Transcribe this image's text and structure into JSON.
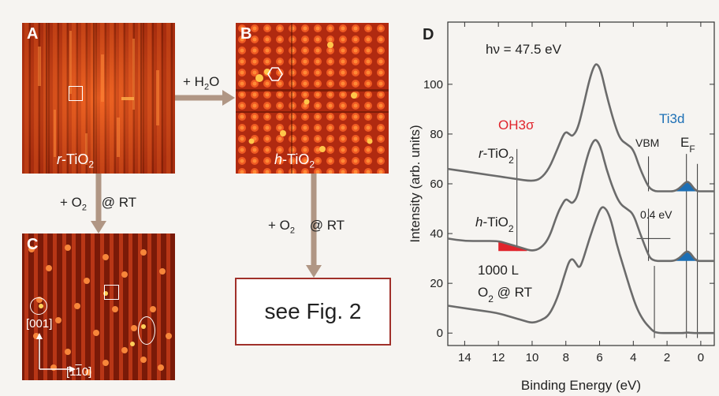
{
  "panel_a": {
    "label": "A",
    "material_prefix": "r",
    "material": "-TiO",
    "subscript": "2"
  },
  "panel_b": {
    "label": "B",
    "material_prefix": "h",
    "material": "-TiO",
    "subscript": "2"
  },
  "panel_c": {
    "label": "C",
    "axis_vertical": "[001]",
    "axis_horizontal": "[1̄ 10]",
    "axis_horizontal_plain": "[1",
    "axis_horizontal_bar": "1",
    "axis_horizontal_end": "0]"
  },
  "arrow_ab": {
    "prefix": "+ H",
    "subscript": "2",
    "suffix": "O"
  },
  "arrow_ac": {
    "prefix": "+ O",
    "subscript": "2",
    "suffix": "@ RT"
  },
  "arrow_b_box": {
    "prefix": "+ O",
    "subscript": "2",
    "suffix": "@ RT"
  },
  "fig_box": {
    "text": "see Fig. 2"
  },
  "panel_d": {
    "label": "D"
  },
  "chart_data": {
    "type": "line",
    "xlabel": "Binding Energy  (eV)",
    "ylabel": "Intensity  (arb. units)",
    "xlim": [
      15,
      -0.8
    ],
    "ylim": [
      -5,
      125
    ],
    "x_reversed": true,
    "xticks": [
      14,
      12,
      10,
      8,
      6,
      4,
      2,
      0
    ],
    "yticks": [
      0,
      20,
      40,
      60,
      80,
      100
    ],
    "annotations": {
      "photon_energy": "hν = 47.5 eV",
      "oh_label": "OH3σ",
      "ti_label": "Ti3d",
      "vbm": "VBM",
      "ef": "E",
      "ef_sub": "F",
      "gap": "0.4 eV",
      "r_tio2_prefix": "r",
      "r_tio2": "-TiO",
      "h_tio2_prefix": "h",
      "h_tio2": "-TiO",
      "tio2_sub": "2",
      "dose_line1": "1000 L",
      "dose_line2_prefix": "O",
      "dose_line2_sub": "2",
      "dose_line2_suffix": "@ RT"
    },
    "colors": {
      "curve": "#6b6b6b",
      "oh_fill": "#e0242c",
      "ti_fill": "#1c6fb5",
      "oh_text": "#e0242c",
      "ti_text": "#1c6fb5"
    },
    "series": [
      {
        "name": "r-TiO2",
        "x": [
          15,
          14,
          13,
          12,
          11,
          10,
          9.5,
          9,
          8.5,
          8.2,
          8.0,
          7.8,
          7.6,
          7.3,
          7.0,
          6.6,
          6.3,
          6.1,
          5.9,
          5.6,
          5.2,
          4.8,
          4.4,
          4.0,
          3.6,
          3.2,
          3.0,
          2.7,
          2.4,
          2.0,
          1.6,
          1.3,
          1.0,
          0.8,
          0.6,
          0.4,
          0.2,
          0,
          -0.8
        ],
        "y": [
          66,
          65,
          64,
          63,
          62,
          61,
          62,
          66,
          74,
          79,
          81,
          80,
          79,
          82,
          90,
          102,
          108,
          108,
          105,
          96,
          86,
          78,
          76,
          74,
          66,
          60,
          58,
          57,
          57,
          57,
          57,
          58,
          60,
          61,
          60,
          58,
          57,
          57,
          57
        ]
      },
      {
        "name": "h-TiO2",
        "x": [
          15,
          14,
          13,
          12,
          11.5,
          11,
          10.5,
          10,
          9.5,
          9,
          8.5,
          8.2,
          8.0,
          7.8,
          7.6,
          7.3,
          7.0,
          6.6,
          6.3,
          6.1,
          5.9,
          5.6,
          5.2,
          4.8,
          4.4,
          4.0,
          3.6,
          3.2,
          3.0,
          2.7,
          2.4,
          2.0,
          1.6,
          1.3,
          1.0,
          0.8,
          0.6,
          0.4,
          0.2,
          0,
          -0.8
        ],
        "y": [
          38,
          37,
          37,
          37,
          36,
          35,
          34,
          33,
          34,
          38,
          48,
          52,
          54,
          53,
          52,
          55,
          64,
          74,
          78,
          77,
          74,
          66,
          58,
          52,
          50,
          48,
          40,
          33,
          30,
          29,
          29,
          29,
          29,
          30,
          32,
          33,
          32,
          30,
          29,
          29,
          29
        ]
      },
      {
        "name": "1000 L O2 @ RT",
        "x": [
          15,
          14,
          13,
          12,
          11,
          10.5,
          10,
          9.5,
          9,
          8.5,
          8.0,
          7.8,
          7.6,
          7.4,
          7.2,
          7.0,
          6.6,
          6.2,
          5.9,
          5.6,
          5.3,
          5.0,
          4.6,
          4.2,
          3.8,
          3.4,
          3.0,
          2.8,
          2.6,
          2.4,
          2.0,
          1.5,
          1.0,
          0.8,
          0.5,
          0,
          -0.8
        ],
        "y": [
          11,
          10,
          9,
          8,
          6,
          5,
          4,
          5,
          7,
          14,
          25,
          29,
          30,
          28,
          26,
          29,
          38,
          46,
          51,
          50,
          45,
          36,
          27,
          18,
          10,
          5,
          2,
          0.6,
          0.2,
          0,
          0,
          0,
          0,
          0.3,
          0,
          0,
          0
        ]
      }
    ],
    "marker_lines": {
      "oh": [
        10.9,
        11
      ],
      "vbm_r": [
        3.1,
        3.1
      ],
      "vbm_h": [
        3.1,
        3.1
      ],
      "vbm_o2": [
        2.75,
        2.75
      ],
      "ti": [
        0.85,
        0.85
      ],
      "ef": [
        0.2,
        0.2
      ],
      "gap_line_y": 38
    }
  }
}
